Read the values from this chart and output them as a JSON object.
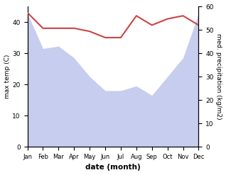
{
  "months": [
    "Jan",
    "Feb",
    "Mar",
    "Apr",
    "May",
    "Jun",
    "Jul",
    "Aug",
    "Sep",
    "Oct",
    "Nov",
    "Dec"
  ],
  "month_indices": [
    0,
    1,
    2,
    3,
    4,
    5,
    6,
    7,
    8,
    9,
    10,
    11
  ],
  "precipitation": [
    57,
    42,
    43,
    38,
    30,
    24,
    24,
    26,
    22,
    30,
    38,
    57
  ],
  "max_temp": [
    43,
    38,
    38,
    38,
    37,
    35,
    35,
    42,
    39,
    41,
    42,
    39
  ],
  "precip_color": "#b0b8e8",
  "temp_color": "#cc4444",
  "temp_linewidth": 1.5,
  "fill_alpha": 0.7,
  "ylim_left": [
    0,
    45
  ],
  "ylim_right": [
    0,
    60
  ],
  "yticks_left": [
    0,
    10,
    20,
    30,
    40
  ],
  "yticks_right": [
    0,
    10,
    20,
    30,
    40,
    50,
    60
  ],
  "xlabel": "date (month)",
  "ylabel_left": "max temp (C)",
  "ylabel_right": "med. precipitation (kg/m2)",
  "bg_color": "#ffffff"
}
